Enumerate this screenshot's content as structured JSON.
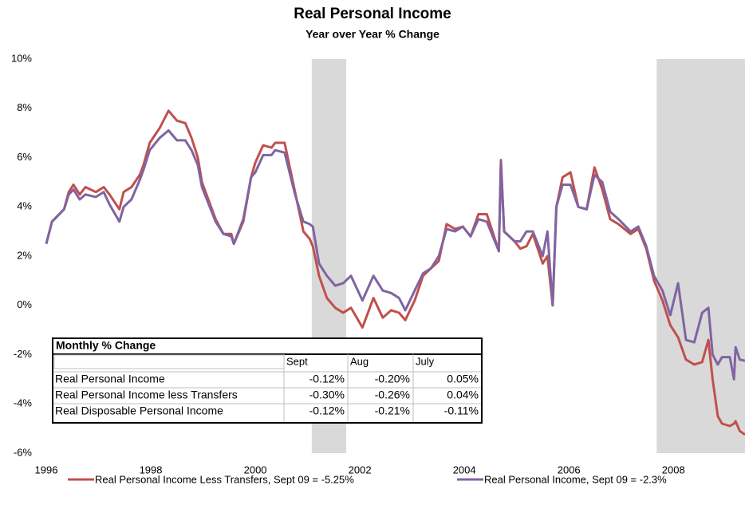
{
  "chart_data": {
    "type": "line",
    "title": "Real Personal Income",
    "subtitle": "Year over Year % Change",
    "x": [
      1996.0,
      1996.11,
      1996.34,
      1996.43,
      1996.52,
      1996.64,
      1996.75,
      1996.95,
      1997.1,
      1997.21,
      1997.4,
      1997.48,
      1997.63,
      1997.79,
      1997.86,
      1997.98,
      1998.17,
      1998.34,
      1998.5,
      1998.66,
      1998.78,
      1998.9,
      1998.98,
      1999.24,
      1999.39,
      1999.54,
      1999.59,
      1999.77,
      1999.92,
      2000.0,
      2000.15,
      2000.31,
      2000.38,
      2000.56,
      2000.76,
      2000.92,
      2001.04,
      2001.1,
      2001.22,
      2001.37,
      2001.53,
      2001.68,
      2001.83,
      2002.05,
      2002.26,
      2002.44,
      2002.6,
      2002.75,
      2002.87,
      2003.05,
      2003.21,
      2003.36,
      2003.51,
      2003.66,
      2003.82,
      2003.97,
      2004.12,
      2004.27,
      2004.43,
      2004.66,
      2004.7,
      2004.76,
      2004.96,
      2005.07,
      2005.19,
      2005.31,
      2005.5,
      2005.59,
      2005.69,
      2005.76,
      2005.88,
      2006.03,
      2006.18,
      2006.34,
      2006.49,
      2006.64,
      2006.79,
      2006.95,
      2007.18,
      2007.33,
      2007.48,
      2007.63,
      2007.79,
      2007.94,
      2008.09,
      2008.24,
      2008.4,
      2008.55,
      2008.67,
      2008.75,
      2008.85,
      2008.93,
      2009.08,
      2009.16,
      2009.19,
      2009.27,
      2009.37
    ],
    "series": [
      {
        "name": "Real Personal Income Less Transfers, Sept 09 = -5.25%",
        "color": "#c0504d",
        "values": [
          2.5,
          3.4,
          3.9,
          4.6,
          4.9,
          4.5,
          4.8,
          4.6,
          4.8,
          4.5,
          3.9,
          4.6,
          4.8,
          5.3,
          5.7,
          6.6,
          7.2,
          7.9,
          7.5,
          7.4,
          6.8,
          6.0,
          5.0,
          3.5,
          2.9,
          2.9,
          2.5,
          3.4,
          5.2,
          5.8,
          6.5,
          6.4,
          6.6,
          6.6,
          4.6,
          3.0,
          2.7,
          2.4,
          1.2,
          0.3,
          -0.1,
          -0.3,
          -0.1,
          -0.9,
          0.3,
          -0.5,
          -0.2,
          -0.3,
          -0.6,
          0.2,
          1.2,
          1.5,
          1.8,
          3.3,
          3.1,
          3.2,
          2.8,
          3.7,
          3.7,
          2.2,
          5.9,
          3.0,
          2.6,
          2.3,
          2.4,
          2.9,
          1.7,
          2.0,
          0.0,
          4.0,
          5.2,
          5.4,
          4.0,
          3.9,
          5.6,
          4.7,
          3.5,
          3.3,
          2.9,
          3.1,
          2.3,
          1.0,
          0.2,
          -0.8,
          -1.3,
          -2.2,
          -2.4,
          -2.3,
          -1.4,
          -3.0,
          -4.5,
          -4.8,
          -4.9,
          -4.8,
          -4.7,
          -5.1,
          -5.25
        ]
      },
      {
        "name": "Real Personal Income, Sept 09 = -2.3%",
        "color": "#8064a2",
        "values": [
          2.5,
          3.4,
          3.9,
          4.5,
          4.7,
          4.3,
          4.5,
          4.4,
          4.6,
          4.1,
          3.4,
          4.0,
          4.3,
          5.1,
          5.5,
          6.3,
          6.8,
          7.1,
          6.7,
          6.7,
          6.3,
          5.7,
          4.8,
          3.4,
          2.9,
          2.8,
          2.5,
          3.5,
          5.2,
          5.4,
          6.1,
          6.1,
          6.3,
          6.2,
          4.5,
          3.4,
          3.3,
          3.2,
          1.7,
          1.2,
          0.8,
          0.9,
          1.2,
          0.2,
          1.2,
          0.6,
          0.5,
          0.3,
          -0.2,
          0.6,
          1.3,
          1.5,
          2.0,
          3.1,
          3.0,
          3.2,
          2.8,
          3.5,
          3.4,
          2.2,
          5.8,
          3.0,
          2.6,
          2.6,
          3.0,
          3.0,
          2.0,
          3.0,
          0.0,
          4.0,
          4.9,
          4.9,
          4.0,
          3.9,
          5.3,
          5.0,
          3.8,
          3.5,
          3.0,
          3.2,
          2.4,
          1.2,
          0.6,
          -0.4,
          0.9,
          -1.4,
          -1.5,
          -0.3,
          -0.1,
          -2.0,
          -2.4,
          -2.1,
          -2.1,
          -3.0,
          -1.7,
          -2.2,
          -2.25
        ]
      }
    ],
    "shaded": [
      [
        2001.08,
        2001.74
      ],
      [
        2007.68,
        2009.37
      ]
    ],
    "xlim": [
      1996,
      2009.37
    ],
    "xticks": [
      1996,
      1998,
      2000,
      2002,
      2004,
      2006,
      2008
    ],
    "ylim": [
      -6,
      10
    ],
    "yticks": [
      {
        "value": -6,
        "label": "-6%"
      },
      {
        "value": -4,
        "label": "-4%"
      },
      {
        "value": -2,
        "label": "-2%"
      },
      {
        "value": 0,
        "label": "0%"
      },
      {
        "value": 2,
        "label": "2%"
      },
      {
        "value": 4,
        "label": "4%"
      },
      {
        "value": 6,
        "label": "6%"
      },
      {
        "value": 8,
        "label": "8%"
      },
      {
        "value": 10,
        "label": "10%"
      }
    ],
    "legend": "bottom",
    "table": {
      "title": "Monthly % Change",
      "columns": [
        "Sept",
        "Aug",
        "July"
      ],
      "rows": [
        {
          "label": "Real Personal Income",
          "values": [
            "-0.12%",
            "-0.20%",
            "0.05%"
          ]
        },
        {
          "label": "Real Personal Income less Transfers",
          "values": [
            "-0.30%",
            "-0.26%",
            "0.04%"
          ]
        },
        {
          "label": "Real Disposable Personal Income",
          "values": [
            "-0.12%",
            "-0.21%",
            "-0.11%"
          ]
        }
      ]
    }
  }
}
